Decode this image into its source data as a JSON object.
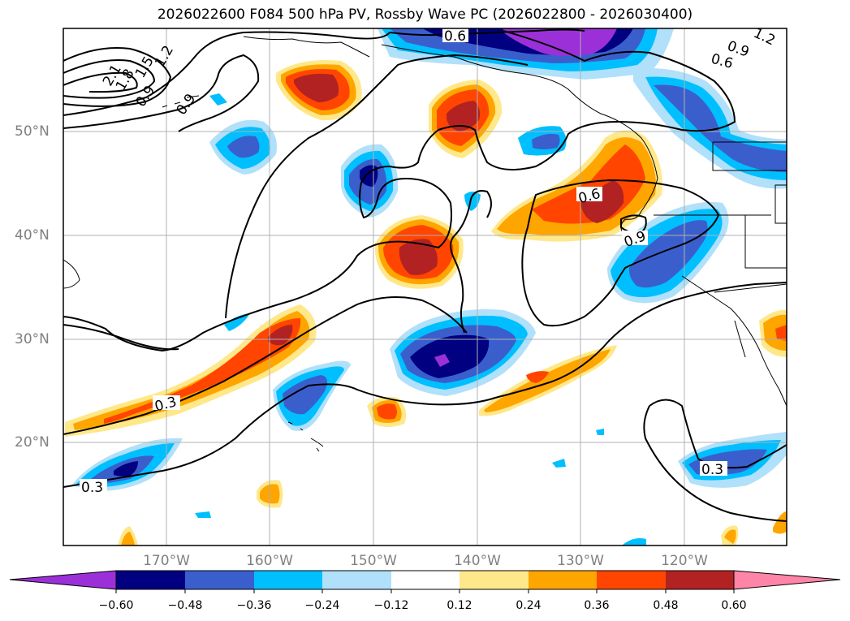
{
  "title": "2026022600 F084 500 hPa PV, Rossby Wave PC (2026022800 - 2026030400)",
  "lat_labels": [
    "50°N",
    "40°N",
    "30°N",
    "20°N"
  ],
  "lon_labels": [
    "170°W",
    "160°W",
    "150°W",
    "140°W",
    "130°W",
    "120°W"
  ],
  "colorbar": {
    "ticks": [
      "−0.60",
      "−0.48",
      "−0.36",
      "−0.24",
      "−0.12",
      "0.12",
      "0.24",
      "0.36",
      "0.48",
      "0.60"
    ],
    "colors": [
      "#9b30d9",
      "#000080",
      "#3a5fcd",
      "#00bfff",
      "#b0e0fa",
      "#ffffff",
      "#ffe88a",
      "#ffa500",
      "#ff4500",
      "#b22222",
      "#ff85a8"
    ]
  },
  "contour_labels": [
    "0.6",
    "0.9",
    "0.6",
    "1.2",
    "2.1",
    "1.8",
    "1.5",
    "1.2",
    "0.9",
    "0.9",
    "0.6",
    "0.9",
    "0.3",
    "0.3",
    "0.3"
  ],
  "colors": {
    "grid": "#b0b0b0",
    "contour": "#000000",
    "label_gray": "#808080"
  }
}
